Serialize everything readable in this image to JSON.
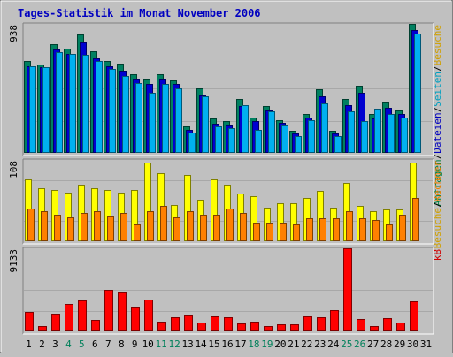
{
  "chart_data": {
    "type": "bar",
    "title": "Tages-Statistik im Monat November 2006",
    "categories": [
      "1",
      "2",
      "3",
      "4",
      "5",
      "6",
      "7",
      "8",
      "9",
      "10",
      "11",
      "12",
      "13",
      "14",
      "15",
      "16",
      "17",
      "18",
      "19",
      "20",
      "21",
      "22",
      "23",
      "24",
      "25",
      "26",
      "27",
      "28",
      "29",
      "30",
      "31"
    ],
    "weekend_days": [
      "4",
      "5",
      "11",
      "12",
      "18",
      "19",
      "25",
      "26"
    ],
    "panels": [
      {
        "id": "top",
        "ymax_label": "938",
        "ymax": 938,
        "legend": [
          {
            "text": "Anfragen",
            "color": "#008040"
          },
          {
            "text": "/",
            "color": "#000000"
          },
          {
            "text": "Dateien",
            "color": "#0000c0"
          },
          {
            "text": "/",
            "color": "#000000"
          },
          {
            "text": "Seiten",
            "color": "#00a0c0"
          },
          {
            "text": "/",
            "color": "#000000"
          },
          {
            "text": "Besuche",
            "color": "#d0a000"
          }
        ],
        "series": [
          {
            "name": "Anfragen",
            "color": "#008060",
            "values": [
              670,
              640,
              790,
              760,
              860,
              740,
              670,
              650,
              570,
              540,
              570,
              530,
              190,
              470,
              250,
              230,
              390,
              260,
              340,
              240,
              160,
              280,
              460,
              160,
              390,
              490,
              280,
              370,
              310,
              938,
              0
            ]
          },
          {
            "name": "Dateien",
            "color": "#0000d0",
            "values": [
              630,
              620,
              750,
              720,
              800,
              690,
              630,
              600,
              540,
              500,
              540,
              500,
              170,
              420,
              210,
              200,
              340,
              230,
              310,
              220,
              140,
              260,
              410,
              140,
              350,
              440,
              250,
              330,
              280,
              890,
              0
            ]
          },
          {
            "name": "Seiten",
            "color": "#00b0f0",
            "values": [
              630,
              620,
              730,
              720,
              710,
              670,
              610,
              560,
              510,
              440,
              500,
              470,
              150,
              410,
              190,
              180,
              350,
              170,
              300,
              200,
              120,
              240,
              360,
              120,
              300,
              230,
              320,
              280,
              260,
              870,
              0
            ]
          }
        ]
      },
      {
        "id": "middle",
        "ymax_label": "108",
        "ymax": 108,
        "legend": [
          {
            "text": "Besuche",
            "color": "#d0a000"
          },
          {
            "text": "/",
            "color": "#000000"
          },
          {
            "text": "Rechner",
            "color": "#f08000"
          }
        ],
        "series": [
          {
            "name": "Besuche",
            "color": "#ffff00",
            "values": [
              82,
              70,
              68,
              65,
              75,
              70,
              68,
              65,
              68,
              105,
              90,
              48,
              88,
              55,
              82,
              75,
              63,
              60,
              45,
              50,
              50,
              58,
              67,
              45,
              78,
              47,
              40,
              42,
              42,
              105,
              0
            ]
          },
          {
            "name": "Rechner",
            "color": "#ff8000",
            "values": [
              44,
              40,
              35,
              32,
              38,
              40,
              33,
              38,
              22,
              40,
              47,
              32,
              40,
              35,
              35,
              43,
              38,
              25,
              25,
              25,
              22,
              30,
              30,
              30,
              40,
              30,
              28,
              22,
              35,
              58,
              0
            ]
          }
        ]
      },
      {
        "id": "bottom",
        "ymax_label": "9133",
        "ymax": 9133,
        "legend": [
          {
            "text": "kB",
            "color": "#d00000"
          }
        ],
        "series": [
          {
            "name": "kB",
            "color": "#ff0000",
            "values": [
              2180,
              560,
              1930,
              3050,
              3390,
              1260,
              4580,
              4320,
              2730,
              3530,
              1050,
              1530,
              1750,
              930,
              1640,
              1540,
              920,
              1080,
              610,
              760,
              760,
              1680,
              1600,
              2290,
              9133,
              1360,
              590,
              1420,
              1020,
              3340,
              0
            ]
          }
        ]
      }
    ]
  }
}
